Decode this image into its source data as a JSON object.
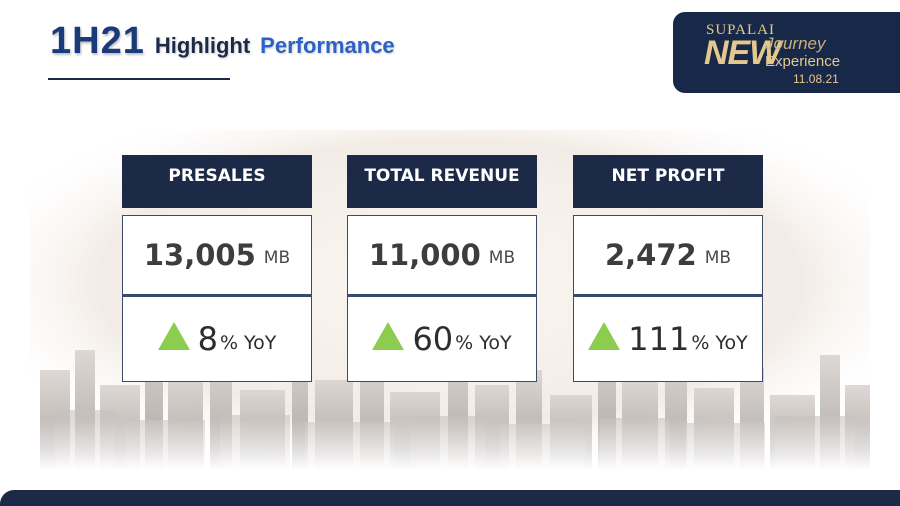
{
  "header": {
    "title_main": "1H21",
    "title_word1": "Highlight",
    "title_word2": "Performance"
  },
  "logo": {
    "brand": "SUPALAI",
    "new": "NEW",
    "journey": "Journey",
    "experience": "Experience",
    "date": "11.08.21"
  },
  "cards": [
    {
      "title": "PRESALES",
      "value": "13,005",
      "unit": "MB",
      "growth": "8",
      "growth_suffix": "% YoY"
    },
    {
      "title": "TOTAL REVENUE",
      "value": "11,000",
      "unit": "MB",
      "growth": "60",
      "growth_suffix": "% YoY"
    },
    {
      "title": "NET PROFIT",
      "value": "2,472",
      "unit": "MB",
      "growth": "111",
      "growth_suffix": "% YoY"
    }
  ],
  "colors": {
    "navy": "#1c2a48",
    "title_blue": "#1a3a7a",
    "accent_blue": "#2d62c4",
    "gold": "#e4c98e",
    "up_arrow_green": "#8ccd4f"
  },
  "icons": {
    "growth": "triangle-up-icon",
    "background": "city-skyline-image"
  }
}
